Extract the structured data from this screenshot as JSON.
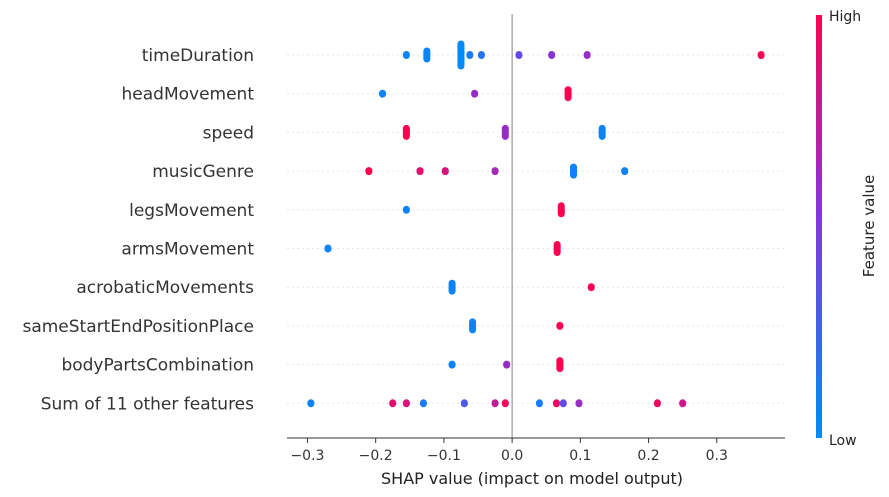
{
  "chart_data": {
    "type": "scatter",
    "title": "",
    "xlabel": "SHAP value (impact on model output)",
    "xlim": [
      -0.33,
      0.4
    ],
    "xticks": [
      "-0.3",
      "-0.2",
      "-0.1",
      "0.0",
      "0.1",
      "0.2",
      "0.3"
    ],
    "xtick_values": [
      -0.3,
      -0.2,
      -0.1,
      0.0,
      0.1,
      0.2,
      0.3
    ],
    "grid": false,
    "colorbar": {
      "label": "Feature value",
      "high_label": "High",
      "low_label": "Low",
      "low_color": "#008bfb",
      "high_color": "#ff0051"
    },
    "features": [
      {
        "name": "timeDuration",
        "points": [
          {
            "x": -0.155,
            "v": 0.05
          },
          {
            "x": -0.125,
            "v": 0.05
          },
          {
            "x": -0.125,
            "v": 0.05
          },
          {
            "x": -0.075,
            "v": 0.0
          },
          {
            "x": -0.075,
            "v": 0.0
          },
          {
            "x": -0.075,
            "v": 0.0
          },
          {
            "x": -0.075,
            "v": 0.0
          },
          {
            "x": -0.062,
            "v": 0.1
          },
          {
            "x": -0.045,
            "v": 0.15
          },
          {
            "x": 0.01,
            "v": 0.4
          },
          {
            "x": 0.058,
            "v": 0.55
          },
          {
            "x": 0.11,
            "v": 0.6
          },
          {
            "x": 0.365,
            "v": 1.0
          }
        ]
      },
      {
        "name": "headMovement",
        "points": [
          {
            "x": -0.19,
            "v": 0.05
          },
          {
            "x": -0.055,
            "v": 0.6
          },
          {
            "x": 0.082,
            "v": 1.0
          },
          {
            "x": 0.082,
            "v": 1.0
          }
        ]
      },
      {
        "name": "speed",
        "points": [
          {
            "x": -0.155,
            "v": 1.0
          },
          {
            "x": -0.155,
            "v": 1.0
          },
          {
            "x": -0.01,
            "v": 0.6
          },
          {
            "x": -0.01,
            "v": 0.6
          },
          {
            "x": 0.132,
            "v": 0.05
          },
          {
            "x": 0.132,
            "v": 0.05
          }
        ]
      },
      {
        "name": "musicGenre",
        "points": [
          {
            "x": -0.21,
            "v": 1.0
          },
          {
            "x": -0.135,
            "v": 0.9
          },
          {
            "x": -0.098,
            "v": 0.85
          },
          {
            "x": -0.025,
            "v": 0.65
          },
          {
            "x": 0.09,
            "v": 0.05
          },
          {
            "x": 0.09,
            "v": 0.05
          },
          {
            "x": 0.165,
            "v": 0.05
          }
        ]
      },
      {
        "name": "legsMovement",
        "points": [
          {
            "x": -0.155,
            "v": 0.05
          },
          {
            "x": 0.072,
            "v": 1.0
          },
          {
            "x": 0.072,
            "v": 1.0
          }
        ]
      },
      {
        "name": "armsMovement",
        "points": [
          {
            "x": -0.27,
            "v": 0.05
          },
          {
            "x": 0.066,
            "v": 1.0
          },
          {
            "x": 0.066,
            "v": 1.0
          }
        ]
      },
      {
        "name": "acrobaticMovements",
        "points": [
          {
            "x": -0.088,
            "v": 0.05
          },
          {
            "x": -0.088,
            "v": 0.05
          },
          {
            "x": 0.116,
            "v": 1.0
          }
        ]
      },
      {
        "name": "sameStartEndPositionPlace",
        "points": [
          {
            "x": -0.058,
            "v": 0.05
          },
          {
            "x": -0.058,
            "v": 0.05
          },
          {
            "x": 0.07,
            "v": 1.0
          }
        ]
      },
      {
        "name": "bodyPartsCombination",
        "points": [
          {
            "x": -0.088,
            "v": 0.05
          },
          {
            "x": -0.008,
            "v": 0.6
          },
          {
            "x": 0.07,
            "v": 1.0
          },
          {
            "x": 0.07,
            "v": 1.0
          }
        ]
      },
      {
        "name": "Sum of 11 other features",
        "points": [
          {
            "x": -0.295,
            "v": 0.05
          },
          {
            "x": -0.175,
            "v": 0.9
          },
          {
            "x": -0.155,
            "v": 0.85
          },
          {
            "x": -0.13,
            "v": 0.1
          },
          {
            "x": -0.07,
            "v": 0.3
          },
          {
            "x": -0.025,
            "v": 0.75
          },
          {
            "x": -0.01,
            "v": 0.95
          },
          {
            "x": 0.04,
            "v": 0.1
          },
          {
            "x": 0.065,
            "v": 0.95
          },
          {
            "x": 0.075,
            "v": 0.4
          },
          {
            "x": 0.098,
            "v": 0.6
          },
          {
            "x": 0.213,
            "v": 0.95
          },
          {
            "x": 0.25,
            "v": 0.8
          }
        ]
      }
    ]
  }
}
